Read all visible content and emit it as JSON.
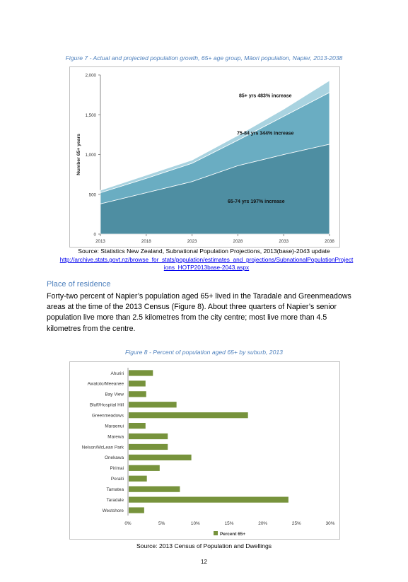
{
  "figure7": {
    "caption": "Figure 7 - Actual and projected population growth, 65+ age group, Māori population, Napier, 2013-2038",
    "source": "Source: Statistics New Zealand, Subnational Population Projections, 2013(base)-2043 update",
    "link_line1": "http://archive.stats.govt.nz/browse_for_stats/population/estimates_and_projections/SubnationalPopulationProject",
    "link_line2": "ions_HOTP2013base-2043.aspx"
  },
  "place_of_residence": {
    "heading": "Place of residence",
    "lines": [
      "Forty-two percent of Napier’s population aged 65+ lived in the Taradale and Greenmeadows",
      "areas at the time of the 2013 Census (Figure 8). About three quarters of Napier’s senior",
      "population live more than 2.5 kilometres from the city centre; most live more than 4.5",
      "kilometres from the centre."
    ]
  },
  "figure8": {
    "caption": "Figure 8 - Percent of population aged 65+ by suburb, 2013",
    "source": "Source: 2013 Census of Population and Dwellings"
  },
  "page_number": "12",
  "chart_data": [
    {
      "type": "area",
      "stacked": true,
      "x": [
        2013,
        2018,
        2023,
        2028,
        2033,
        2038
      ],
      "x_tick_labels": [
        "2013",
        "2018",
        "2023",
        "2028",
        "2033",
        "2038"
      ],
      "series": [
        {
          "name": "65-74 yrs",
          "values": [
            380,
            520,
            660,
            860,
            1000,
            1130
          ],
          "color": "#4e8ea2"
        },
        {
          "name": "75-84 yrs",
          "values": [
            140,
            180,
            230,
            320,
            480,
            650
          ],
          "color": "#6aadc2"
        },
        {
          "name": "85+ yrs",
          "values": [
            30,
            40,
            40,
            60,
            90,
            150
          ],
          "color": "#a9d3e0"
        }
      ],
      "annotations": [
        {
          "label": "85+ yrs",
          "text": "483% increase",
          "series": "85+ yrs"
        },
        {
          "label": "75-84 yrs",
          "text": "344% increase",
          "series": "75-84 yrs"
        },
        {
          "label": "65-74 yrs",
          "text": "197% increase",
          "series": "65-74 yrs"
        }
      ],
      "ylabel": "Number 65+ years",
      "ylim": [
        0,
        2000
      ],
      "y_ticks": [
        0,
        500,
        1000,
        1500,
        2000
      ],
      "y_tick_labels": [
        "0",
        "500",
        "1,000",
        "1,500",
        "2,000"
      ],
      "grid": false
    },
    {
      "type": "bar",
      "orientation": "horizontal",
      "categories": [
        "Ahuriri",
        "Awatoto/Meeanee",
        "Bay View",
        "Bluff/Hospital Hill",
        "Greenmeadows",
        "Maraenui",
        "Marewa",
        "Nelson/McLean Park",
        "Onekawa",
        "Pirimai",
        "Poraiti",
        "Tamatea",
        "Taradale",
        "Westshore"
      ],
      "series": [
        {
          "name": "Percent 65+",
          "values": [
            3.7,
            2.6,
            2.7,
            7.2,
            17.8,
            2.6,
            5.9,
            5.9,
            9.4,
            4.7,
            2.8,
            7.7,
            23.8,
            2.4
          ],
          "color": "#77933c"
        }
      ],
      "xlim": [
        0,
        30
      ],
      "x_ticks": [
        0,
        5,
        10,
        15,
        20,
        25,
        30
      ],
      "x_tick_labels": [
        "0%",
        "5%",
        "10%",
        "15%",
        "20%",
        "25%",
        "30%"
      ],
      "legend": "bottom",
      "grid": false
    }
  ]
}
